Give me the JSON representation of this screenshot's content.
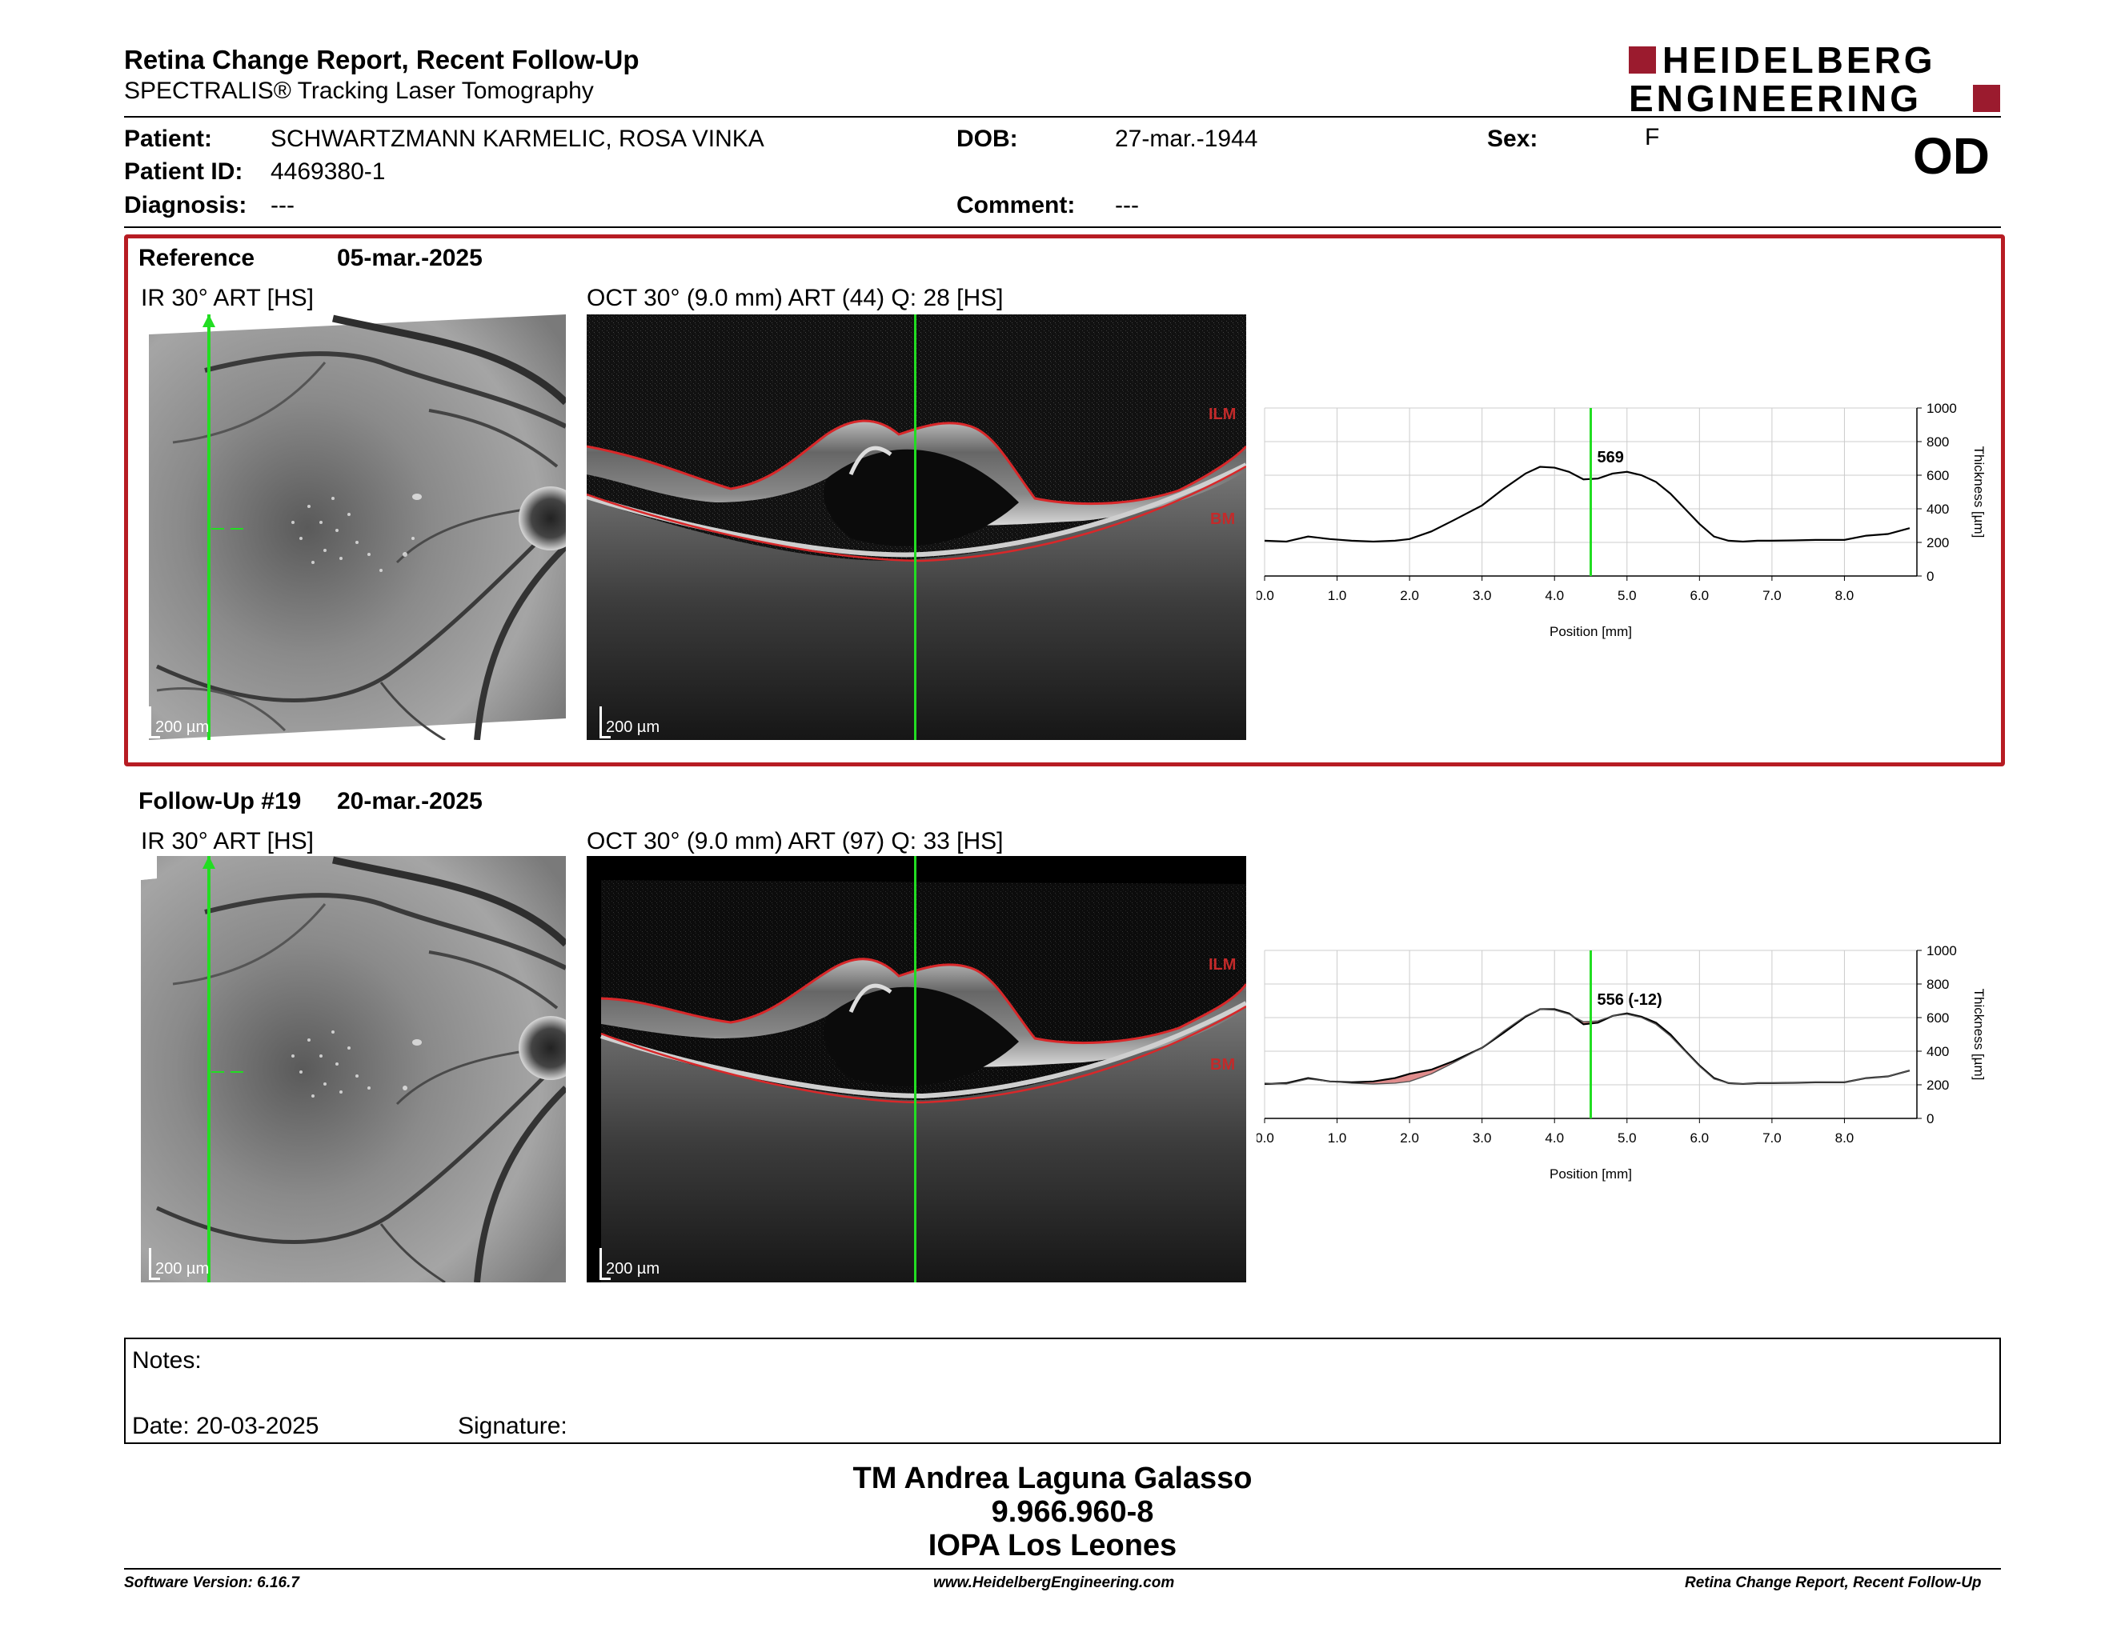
{
  "header": {
    "title": "Retina Change Report, Recent Follow-Up",
    "subtitle": "SPECTRALIS® Tracking Laser Tomography",
    "logo_line1": "HEIDELBERG",
    "logo_line2": "ENGINEERING",
    "eye": "OD"
  },
  "patient": {
    "patient_label": "Patient:",
    "patient_value": "SCHWARTZMANN KARMELIC, ROSA VINKA",
    "id_label": "Patient ID:",
    "id_value": "4469380-1",
    "diagnosis_label": "Diagnosis:",
    "diagnosis_value": "---",
    "dob_label": "DOB:",
    "dob_value": "27-mar.-1944",
    "comment_label": "Comment:",
    "comment_value": "---",
    "sex_label": "Sex:",
    "sex_value": "F"
  },
  "reference": {
    "label": "Reference",
    "date": "05-mar.-2025",
    "ir_title": "IR 30° ART [HS]",
    "oct_title": "OCT 30° (9.0 mm) ART (44) Q: 28 [HS]",
    "scale": "200 µm",
    "ilm": "ILM",
    "bm": "BM",
    "cursor_value": "569"
  },
  "followup": {
    "label": "Follow-Up #19",
    "date": "20-mar.-2025",
    "ir_title": "IR 30° ART [HS]",
    "oct_title": "OCT 30° (9.0 mm) ART (97) Q: 33 [HS]",
    "scale": "200 µm",
    "ilm": "ILM",
    "bm": "BM",
    "cursor_value": "556 (-12)"
  },
  "chart_data": [
    {
      "type": "line",
      "xlabel": "Position [mm]",
      "ylabel": "Thickness [µm]",
      "xlim": [
        0,
        9.0
      ],
      "ylim": [
        0,
        1000
      ],
      "x_ticks": [
        "0.0",
        "1.0",
        "2.0",
        "3.0",
        "4.0",
        "5.0",
        "6.0",
        "7.0",
        "8.0"
      ],
      "y_ticks": [
        "0",
        "200",
        "400",
        "600",
        "800",
        "1000"
      ],
      "cursor_x": 4.5,
      "cursor_label": "569",
      "series": [
        {
          "x": [
            0.0,
            0.3,
            0.6,
            0.9,
            1.2,
            1.5,
            1.8,
            2.0,
            2.3,
            2.6,
            3.0,
            3.3,
            3.6,
            3.8,
            4.0,
            4.2,
            4.4,
            4.6,
            4.8,
            5.0,
            5.2,
            5.4,
            5.6,
            5.8,
            6.0,
            6.2,
            6.4,
            6.6,
            6.8,
            7.0,
            7.3,
            7.6,
            8.0,
            8.3,
            8.6,
            8.9
          ],
          "values": [
            210,
            205,
            235,
            220,
            210,
            205,
            210,
            220,
            265,
            330,
            420,
            520,
            610,
            650,
            645,
            620,
            575,
            580,
            610,
            620,
            600,
            560,
            490,
            400,
            310,
            235,
            210,
            205,
            210,
            210,
            212,
            215,
            215,
            240,
            250,
            285
          ]
        }
      ]
    },
    {
      "type": "line",
      "xlabel": "Position [mm]",
      "ylabel": "Thickness [µm]",
      "xlim": [
        0,
        9.0
      ],
      "ylim": [
        0,
        1000
      ],
      "x_ticks": [
        "0.0",
        "1.0",
        "2.0",
        "3.0",
        "4.0",
        "5.0",
        "6.0",
        "7.0",
        "8.0"
      ],
      "y_ticks": [
        "0",
        "200",
        "400",
        "600",
        "800",
        "1000"
      ],
      "cursor_x": 4.5,
      "cursor_label": "556 (-12)",
      "series": [
        {
          "x": [
            0.0,
            0.3,
            0.6,
            0.9,
            1.2,
            1.5,
            1.8,
            2.0,
            2.3,
            2.6,
            3.0,
            3.3,
            3.6,
            3.8,
            4.0,
            4.2,
            4.4,
            4.6,
            4.8,
            5.0,
            5.2,
            5.4,
            5.6,
            5.8,
            6.0,
            6.2,
            6.4,
            6.6,
            6.8,
            7.0,
            7.3,
            7.6,
            8.0,
            8.3,
            8.6,
            8.9
          ],
          "values": [
            205,
            210,
            240,
            220,
            215,
            220,
            240,
            265,
            290,
            340,
            420,
            510,
            605,
            650,
            650,
            625,
            560,
            570,
            610,
            625,
            605,
            570,
            500,
            405,
            315,
            240,
            210,
            205,
            210,
            210,
            212,
            215,
            215,
            240,
            250,
            285
          ]
        },
        {
          "x": [
            0.0,
            0.3,
            0.6,
            0.9,
            1.2,
            1.5,
            1.8,
            2.0,
            2.3,
            2.6,
            3.0,
            3.3,
            3.6,
            3.8,
            4.0,
            4.2,
            4.4,
            4.6,
            4.8,
            5.0,
            5.2,
            5.4,
            5.6,
            5.8,
            6.0,
            6.2,
            6.4,
            6.6,
            6.8,
            7.0,
            7.3,
            7.6,
            8.0,
            8.3,
            8.6,
            8.9
          ],
          "values": [
            210,
            205,
            235,
            220,
            210,
            205,
            210,
            220,
            265,
            330,
            420,
            520,
            610,
            650,
            645,
            620,
            575,
            580,
            610,
            620,
            600,
            560,
            490,
            400,
            310,
            235,
            210,
            205,
            210,
            210,
            212,
            215,
            215,
            240,
            250,
            285
          ]
        }
      ]
    }
  ],
  "notes": {
    "notes_label": "Notes:",
    "date_label": "Date: 20-03-2025",
    "signature_label": "Signature:"
  },
  "signer": {
    "name": "TM Andrea Laguna Galasso",
    "id": "9.966.960-8",
    "org": "IOPA Los Leones"
  },
  "footer": {
    "version": "Software Version: 6.16.7",
    "url": "www.HeidelbergEngineering.com",
    "report": "Retina Change Report, Recent Follow-Up"
  },
  "colors": {
    "accent": "#b71c23",
    "cursor": "#22dd22",
    "diff_fill": "#e08c8c",
    "layer": "#d8282a"
  }
}
